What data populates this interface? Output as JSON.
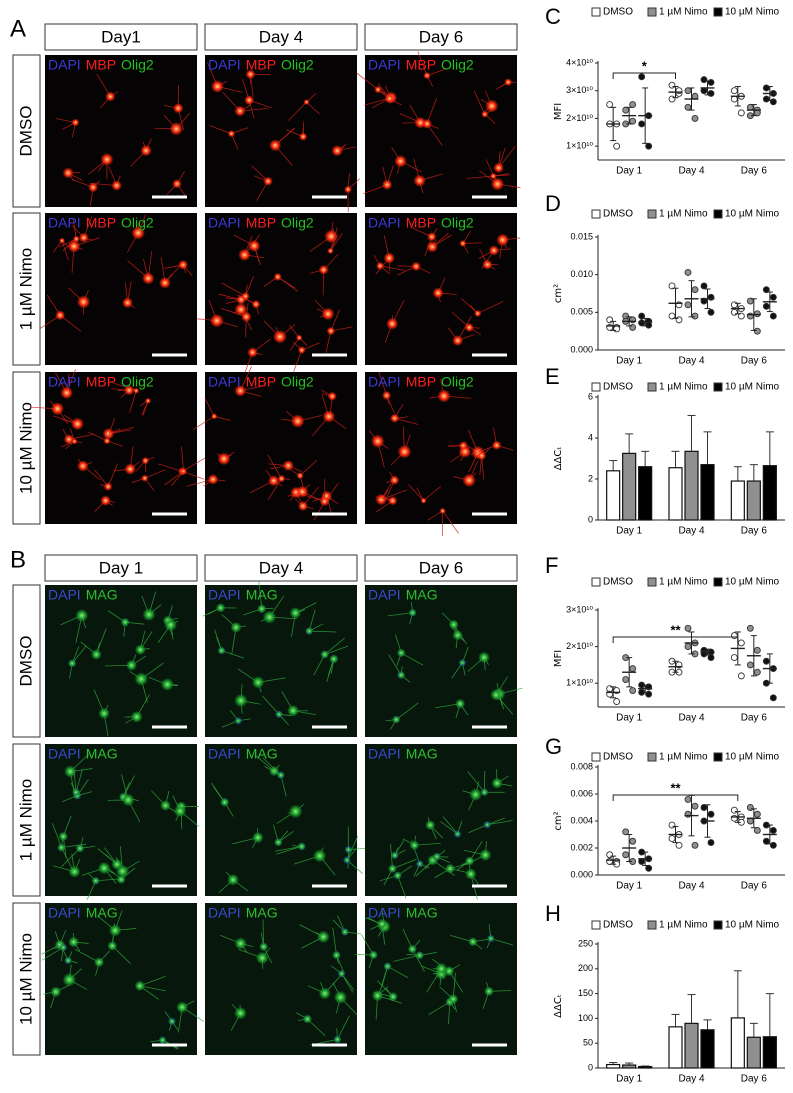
{
  "image_panels": [
    {
      "label": "A",
      "columns": [
        "Day1",
        "Day 4",
        "Day 6"
      ],
      "rows": [
        "DMSO",
        "1 µM Nimo",
        "10 µM Nimo"
      ],
      "stains": [
        "DAPI",
        "MBP",
        "Olig2"
      ],
      "stain_colors": [
        "#3a3ad8",
        "#ff1e1e",
        "#22c022"
      ]
    },
    {
      "label": "B",
      "columns": [
        "Day 1",
        "Day 4",
        "Day 6"
      ],
      "rows": [
        "DMSO",
        "1 µM Nimo",
        "10 µM Nimo"
      ],
      "stains": [
        "DAPI",
        "MAG"
      ],
      "stain_colors": [
        "#3a4ad0",
        "#2fc02f"
      ]
    }
  ],
  "chart_data": [
    {
      "type": "dotplot",
      "label": "C",
      "ylabel": "MFI",
      "categories": [
        "Day 1",
        "Day 4",
        "Day 6"
      ],
      "ylim": [
        5000000000.0,
        40000000000.0
      ],
      "yticks": [
        {
          "value": 10000000000.0,
          "label": "1×10¹⁰"
        },
        {
          "value": 20000000000.0,
          "label": "2×10¹⁰"
        },
        {
          "value": 30000000000.0,
          "label": "3×10¹⁰"
        },
        {
          "value": 40000000000.0,
          "label": "4×10¹⁰"
        }
      ],
      "annotations": [
        "*"
      ],
      "series": [
        {
          "name": "DMSO",
          "color": "#ffffff",
          "values": [
            18000000000.0,
            29500000000.0,
            28000000000.0
          ],
          "errors": [
            6000000000.0,
            2000000000.0,
            3500000000.0
          ],
          "points": [
            [
              25000000000.0,
              18000000000.0,
              18000000000.0,
              10000000000.0
            ],
            [
              32000000000.0,
              29000000000.0,
              27000000000.0,
              30000000000.0
            ],
            [
              30000000000.0,
              28000000000.0,
              27000000000.0,
              22000000000.0
            ]
          ]
        },
        {
          "name": "1 µM Nimo",
          "color": "#909090",
          "values": [
            21000000000.0,
            27000000000.0,
            23000000000.0
          ],
          "errors": [
            3000000000.0,
            4000000000.0,
            2000000000.0
          ],
          "points": [
            [
              23000000000.0,
              25000000000.0,
              18000000000.0,
              19000000000.0
            ],
            [
              30000000000.0,
              28000000000.0,
              24000000000.0,
              20000000000.0
            ],
            [
              24000000000.0,
              23000000000.0,
              21000000000.0,
              22000000000.0
            ]
          ]
        },
        {
          "name": "10 µM Nimo",
          "color": "#000000",
          "values": [
            21000000000.0,
            31000000000.0,
            29000000000.0
          ],
          "errors": [
            10000000000.0,
            2500000000.0,
            2500000000.0
          ],
          "points": [
            [
              35000000000.0,
              21000000000.0,
              18000000000.0,
              10000000000.0
            ],
            [
              34000000000.0,
              33000000000.0,
              30000000000.0,
              29000000000.0
            ],
            [
              31000000000.0,
              29000000000.0,
              27000000000.0,
              26000000000.0
            ]
          ]
        }
      ]
    },
    {
      "type": "dotplot",
      "label": "D",
      "ylabel": "cm²",
      "categories": [
        "Day 1",
        "Day 4",
        "Day 6"
      ],
      "ylim": [
        0,
        0.015
      ],
      "yticks": [
        {
          "value": 0,
          "label": "0.000"
        },
        {
          "value": 0.005,
          "label": "0.005"
        },
        {
          "value": 0.01,
          "label": "0.010"
        },
        {
          "value": 0.015,
          "label": "0.015"
        }
      ],
      "series": [
        {
          "name": "DMSO",
          "color": "#ffffff",
          "values": [
            0.0032,
            0.0062,
            0.0055
          ],
          "errors": [
            0.0006,
            0.002,
            0.0007
          ],
          "points": [
            [
              0.004,
              0.003,
              0.003,
              0.0028
            ],
            [
              0.0085,
              0.006,
              0.0045,
              0.004
            ],
            [
              0.006,
              0.0055,
              0.005,
              0.0045
            ]
          ]
        },
        {
          "name": "1 µM Nimo",
          "color": "#909090",
          "values": [
            0.0038,
            0.0068,
            0.0047
          ],
          "errors": [
            0.0006,
            0.0024,
            0.0021
          ],
          "points": [
            [
              0.0045,
              0.004,
              0.0038,
              0.003
            ],
            [
              0.0103,
              0.008,
              0.006,
              0.0045
            ],
            [
              0.0065,
              0.0048,
              0.0045,
              0.0025
            ]
          ]
        },
        {
          "name": "10 µM Nimo",
          "color": "#000000",
          "values": [
            0.0037,
            0.0068,
            0.0064
          ],
          "errors": [
            0.0005,
            0.0013,
            0.0013
          ],
          "points": [
            [
              0.0045,
              0.0038,
              0.0036,
              0.0033
            ],
            [
              0.0085,
              0.007,
              0.0065,
              0.005
            ],
            [
              0.008,
              0.007,
              0.0058,
              0.0045
            ]
          ]
        }
      ]
    },
    {
      "type": "bar",
      "label": "E",
      "ylabel": "ΔΔCₜ",
      "categories": [
        "Day 1",
        "Day 4",
        "Day 6"
      ],
      "ylim": [
        0,
        6
      ],
      "yticks": [
        0,
        2,
        4,
        6
      ],
      "series": [
        {
          "name": "DMSO",
          "color": "#ffffff",
          "values": [
            2.4,
            2.55,
            1.9
          ],
          "errors": [
            0.5,
            0.8,
            0.7
          ]
        },
        {
          "name": "1 µM Nimo",
          "color": "#909090",
          "values": [
            3.25,
            3.35,
            1.9
          ],
          "errors": [
            0.95,
            1.75,
            0.8
          ]
        },
        {
          "name": "10 µM Nimo",
          "color": "#000000",
          "values": [
            2.6,
            2.7,
            2.65
          ],
          "errors": [
            0.75,
            1.6,
            1.65
          ]
        }
      ]
    },
    {
      "type": "dotplot",
      "label": "F",
      "ylabel": "MFI",
      "categories": [
        "Day 1",
        "Day 4",
        "Day 6"
      ],
      "ylim": [
        3500000000.0,
        30000000000.0
      ],
      "yticks": [
        {
          "value": 10000000000.0,
          "label": "1×10¹⁰"
        },
        {
          "value": 20000000000.0,
          "label": "2×10¹⁰"
        },
        {
          "value": 30000000000.0,
          "label": "3×10¹⁰"
        }
      ],
      "annotations": [
        "**"
      ],
      "series": [
        {
          "name": "DMSO",
          "color": "#ffffff",
          "values": [
            7500000000.0,
            14500000000.0,
            19500000000.0
          ],
          "errors": [
            1500000000.0,
            1500000000.0,
            4500000000.0
          ],
          "points": [
            [
              8500000000.0,
              8000000000.0,
              7000000000.0,
              5000000000.0
            ],
            [
              16000000000.0,
              15000000000.0,
              13000000000.0,
              13000000000.0
            ],
            [
              23000000000.0,
              21000000000.0,
              17000000000.0,
              12000000000.0
            ]
          ]
        },
        {
          "name": "1 µM Nimo",
          "color": "#909090",
          "values": [
            13000000000.0,
            21000000000.0,
            17500000000.0
          ],
          "errors": [
            4000000000.0,
            3000000000.0,
            5500000000.0
          ],
          "points": [
            [
              17000000000.0,
              14000000000.0,
              11000000000.0,
              8000000000.0
            ],
            [
              25000000000.0,
              21000000000.0,
              20000000000.0,
              18000000000.0
            ],
            [
              25000000000.0,
              19000000000.0,
              15000000000.0,
              13000000000.0
            ]
          ]
        },
        {
          "name": "10 µM Nimo",
          "color": "#000000",
          "values": [
            8500000000.0,
            18500000000.0,
            14000000000.0
          ],
          "errors": [
            1000000000.0,
            800000000.0,
            4000000000.0
          ],
          "points": [
            [
              9500000000.0,
              9000000000.0,
              7500000000.0,
              7000000000.0
            ],
            [
              19000000000.0,
              18500000000.0,
              18000000000.0,
              17000000000.0
            ],
            [
              16000000000.0,
              14000000000.0,
              10000000000.0,
              6000000000.0
            ]
          ]
        }
      ]
    },
    {
      "type": "dotplot",
      "label": "G",
      "ylabel": "cm²",
      "categories": [
        "Day 1",
        "Day 4",
        "Day 6"
      ],
      "ylim": [
        0,
        0.008
      ],
      "yticks": [
        {
          "value": 0,
          "label": "0.000"
        },
        {
          "value": 0.002,
          "label": "0.002"
        },
        {
          "value": 0.004,
          "label": "0.004"
        },
        {
          "value": 0.006,
          "label": "0.006"
        },
        {
          "value": 0.008,
          "label": "0.008"
        }
      ],
      "annotations": [
        "**"
      ],
      "series": [
        {
          "name": "DMSO",
          "color": "#ffffff",
          "values": [
            0.0011,
            0.003,
            0.0043
          ],
          "errors": [
            0.0003,
            0.0006,
            0.0004
          ],
          "points": [
            [
              0.0015,
              0.001,
              0.001,
              0.0008
            ],
            [
              0.0037,
              0.003,
              0.0027,
              0.0022
            ],
            [
              0.0048,
              0.0043,
              0.0042,
              0.0039
            ]
          ]
        },
        {
          "name": "1 µM Nimo",
          "color": "#909090",
          "values": [
            0.002,
            0.0044,
            0.0042
          ],
          "errors": [
            0.001,
            0.0015,
            0.0007
          ],
          "points": [
            [
              0.0032,
              0.0025,
              0.0015,
              0.001
            ],
            [
              0.0056,
              0.0051,
              0.0045,
              0.0022
            ],
            [
              0.005,
              0.0045,
              0.004,
              0.0033
            ]
          ]
        },
        {
          "name": "10 µM Nimo",
          "color": "#000000",
          "values": [
            0.0012,
            0.004,
            0.003
          ],
          "errors": [
            0.0005,
            0.0012,
            0.0007
          ],
          "points": [
            [
              0.0017,
              0.0012,
              0.001,
              0.0005
            ],
            [
              0.005,
              0.0045,
              0.004,
              0.0024
            ],
            [
              0.0037,
              0.0033,
              0.0025,
              0.0022
            ]
          ]
        }
      ]
    },
    {
      "type": "bar",
      "label": "H",
      "ylabel": "ΔΔCₜ",
      "categories": [
        "Day 1",
        "Day 4",
        "Day 6"
      ],
      "ylim": [
        0,
        250
      ],
      "yticks": [
        0,
        50,
        100,
        150,
        200,
        250
      ],
      "series": [
        {
          "name": "DMSO",
          "color": "#ffffff",
          "values": [
            7,
            83,
            101
          ],
          "errors": [
            4,
            25,
            95
          ]
        },
        {
          "name": "1 µM Nimo",
          "color": "#909090",
          "values": [
            6,
            90,
            62
          ],
          "errors": [
            4,
            58,
            28
          ]
        },
        {
          "name": "10 µM Nimo",
          "color": "#000000",
          "values": [
            3,
            77,
            63
          ],
          "errors": [
            1,
            20,
            87
          ]
        }
      ]
    }
  ]
}
